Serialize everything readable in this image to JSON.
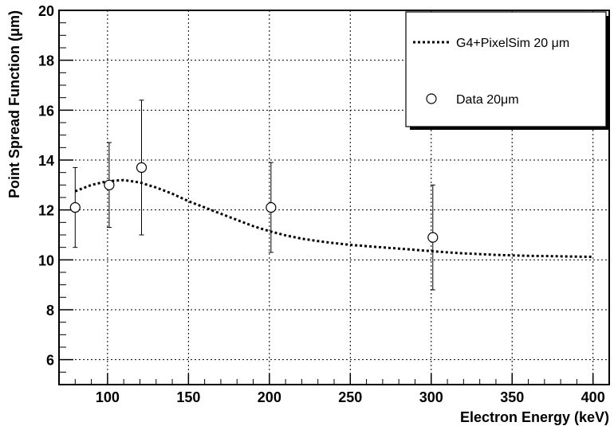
{
  "chart_data": {
    "type": "scatter",
    "title": "",
    "xlabel": "Electron Energy (keV)",
    "ylabel": "Point Spread Function (μm)",
    "xlim": [
      70,
      410
    ],
    "ylim": [
      5,
      20
    ],
    "x_ticks": [
      100,
      150,
      200,
      250,
      300,
      350,
      400
    ],
    "y_ticks": [
      6,
      8,
      10,
      12,
      14,
      16,
      18,
      20
    ],
    "grid": true,
    "legend_position": "top-right",
    "series": [
      {
        "name": "G4+PixelSim 20 μm",
        "kind": "line",
        "style": "dotted",
        "x": [
          80,
          90,
          100,
          110,
          120,
          130,
          140,
          150,
          160,
          170,
          180,
          190,
          200,
          210,
          220,
          230,
          240,
          250,
          260,
          270,
          280,
          290,
          300,
          310,
          320,
          330,
          340,
          350,
          360,
          370,
          380,
          390,
          400
        ],
        "y": [
          12.75,
          13.0,
          13.15,
          13.2,
          13.1,
          12.9,
          12.65,
          12.35,
          12.1,
          11.85,
          11.6,
          11.35,
          11.15,
          10.98,
          10.85,
          10.75,
          10.67,
          10.6,
          10.55,
          10.5,
          10.45,
          10.4,
          10.35,
          10.3,
          10.26,
          10.23,
          10.2,
          10.18,
          10.16,
          10.15,
          10.14,
          10.13,
          10.12
        ]
      },
      {
        "name": "Data 20μm",
        "kind": "points",
        "marker": "open-circle",
        "x": [
          80,
          101,
          121,
          201,
          301
        ],
        "y": [
          12.1,
          13.0,
          13.7,
          12.1,
          10.9
        ],
        "yerr": [
          1.6,
          1.7,
          2.7,
          1.8,
          2.1
        ]
      }
    ]
  }
}
